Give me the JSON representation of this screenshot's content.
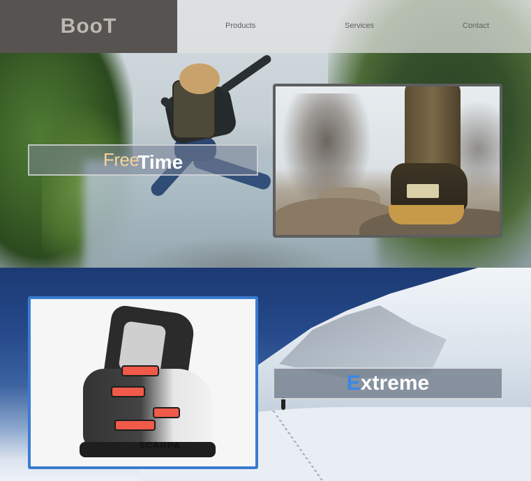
{
  "nav": {
    "brand": "BooT",
    "links": [
      "Products",
      "Services",
      "Contact"
    ]
  },
  "section_free": {
    "title_accent": "Free",
    "title_main": "Time"
  },
  "section_extreme": {
    "title_accent": "E",
    "title_main": "xtreme",
    "boot_brand": "SCARPA"
  },
  "colors": {
    "brand_bg": "#565350",
    "free_accent": "#f3d29d",
    "extreme_accent": "#3a86e8",
    "photo2_border": "#3a7cd0"
  }
}
